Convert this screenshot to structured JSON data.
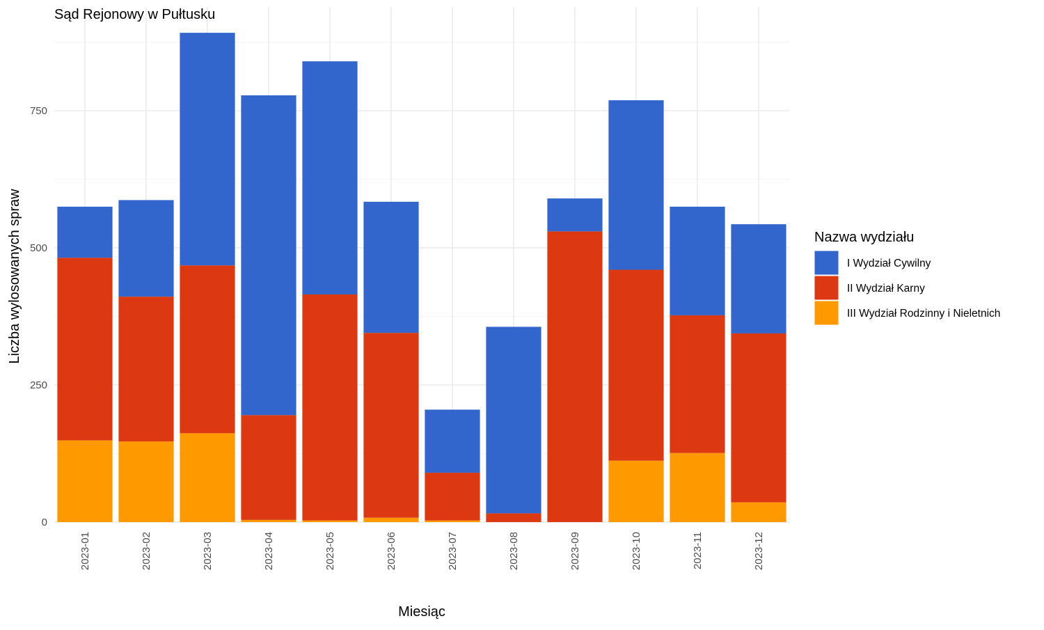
{
  "chart_data": {
    "type": "bar",
    "stacked": true,
    "title": "Sąd Rejonowy w Pułtusku",
    "xlabel": "Miesiąc",
    "ylabel": "Liczba wylosowanych spraw",
    "ylim": [
      0,
      900
    ],
    "y_ticks": [
      0,
      250,
      500,
      750
    ],
    "grid": true,
    "legend_position": "right",
    "legend_title": "Nazwa wydziału",
    "categories": [
      "2023-01",
      "2023-02",
      "2023-03",
      "2023-04",
      "2023-05",
      "2023-06",
      "2023-07",
      "2023-08",
      "2023-09",
      "2023-10",
      "2023-11",
      "2023-12"
    ],
    "series": [
      {
        "name": "III Wydział Rodzinny i Nieletnich",
        "color": "#ff9900",
        "values": [
          149,
          147,
          162,
          4,
          3,
          8,
          3,
          0,
          0,
          112,
          126,
          36
        ]
      },
      {
        "name": "II Wydział Karny",
        "color": "#dc3912",
        "values": [
          333,
          264,
          306,
          191,
          412,
          337,
          87,
          16,
          530,
          348,
          251,
          308
        ]
      },
      {
        "name": "I Wydział Cywilny",
        "color": "#3366cc",
        "values": [
          93,
          176,
          424,
          583,
          425,
          239,
          115,
          340,
          60,
          309,
          198,
          199
        ]
      }
    ],
    "legend_order": [
      "I Wydział Cywilny",
      "II Wydział Karny",
      "III Wydział Rodzinny i Nieletnich"
    ]
  }
}
